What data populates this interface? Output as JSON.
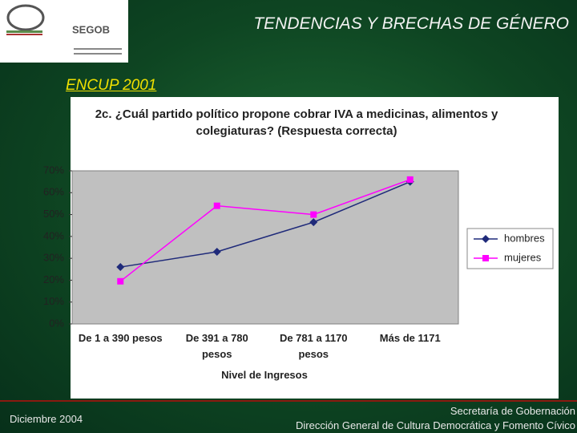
{
  "header": {
    "title": "TENDENCIAS Y BRECHAS DE GÉNERO",
    "subtitle": "ENCUP 2001",
    "logo": "SEGOB"
  },
  "chart_data": {
    "type": "line",
    "title": "2c. ¿Cuál partido político propone cobrar IVA a medicinas, alimentos y colegiaturas? (Respuesta correcta)",
    "x_label": "Nivel de Ingresos",
    "categories": [
      "De 1 a 390 pesos",
      "De 391 a 780 pesos",
      "De 781 a 1170 pesos",
      "Más de 1171"
    ],
    "series": [
      {
        "name": "hombres",
        "color": "#1f2a7a",
        "marker": "diamond",
        "values": [
          26,
          33,
          46.5,
          65
        ]
      },
      {
        "name": "mujeres",
        "color": "#ff00ff",
        "marker": "square",
        "values": [
          19.5,
          54,
          50,
          66
        ]
      }
    ],
    "ylim": [
      0,
      70
    ],
    "yticks": [
      {
        "value": 0,
        "label": "0%"
      },
      {
        "value": 10,
        "label": "10%"
      },
      {
        "value": 20,
        "label": "20%"
      },
      {
        "value": 30,
        "label": "30%"
      },
      {
        "value": 40,
        "label": "40%"
      },
      {
        "value": 50,
        "label": "50%"
      },
      {
        "value": 60,
        "label": "60%"
      },
      {
        "value": 70,
        "label": "70%"
      }
    ],
    "grid": false,
    "legend": "right",
    "plot_background": "#c0c0c0"
  },
  "footer": {
    "date": "Diciembre  2004",
    "org_line1": "Secretaría de Gobernación",
    "org_line2": "Dirección General de Cultura Democrática y Fomento Cívico"
  }
}
